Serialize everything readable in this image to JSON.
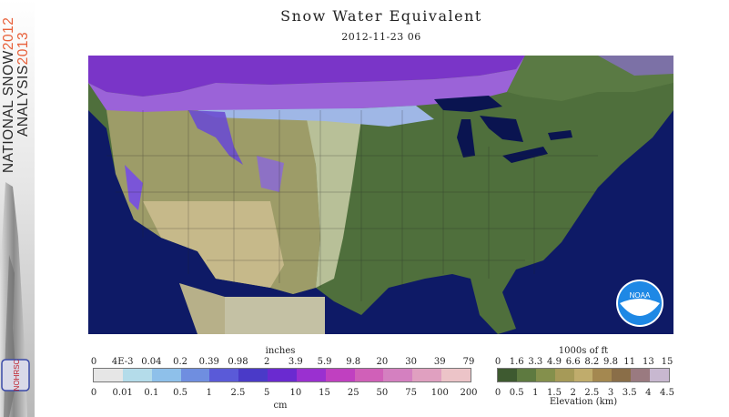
{
  "sidebar": {
    "line1": {
      "name": "NATIONAL SNOW",
      "year": "2012"
    },
    "line2": {
      "name": "ANALYSIS",
      "year": "2013"
    },
    "logo": "NOHRSC"
  },
  "header": {
    "title": "Snow Water Equivalent",
    "timestamp": "2012-11-23 06"
  },
  "map": {
    "noaa_logo": "NOAA",
    "colors": {
      "water": "#0e1a66",
      "lakes": "#0a1450",
      "lowland": "#4f6f3c",
      "plains": "#8c9a62",
      "upland": "#b9ad7c",
      "desert": "#c6c29c",
      "mexico_gray": "#c4c1a4",
      "canada_snow": "#9b63d8",
      "canada_snow_deep": "#7a35c8",
      "snow_light": "#9fb7e6"
    }
  },
  "legend": {
    "swe": {
      "unit_top": "inches",
      "unit_bottom": "cm",
      "top_ticks": [
        "0",
        "4E-3",
        "0.04",
        "0.2",
        "0.39",
        "0.98",
        "2",
        "3.9",
        "5.9",
        "9.8",
        "20",
        "30",
        "39",
        "79"
      ],
      "bottom_ticks": [
        "0",
        "0.01",
        "0.1",
        "0.5",
        "1",
        "2.5",
        "5",
        "10",
        "15",
        "25",
        "50",
        "75",
        "100",
        "200"
      ],
      "colors": [
        "#e6e6e6",
        "#b4dcea",
        "#8ec0ea",
        "#6f8ee0",
        "#5a5ad8",
        "#4a3ac8",
        "#6a2ad0",
        "#9a30d0",
        "#c040c0",
        "#d060b8",
        "#d480c0",
        "#e0a0c0",
        "#ecc4c8"
      ]
    },
    "elevation": {
      "unit_top": "1000s of ft",
      "unit_bottom": "Elevation (km)",
      "top_ticks": [
        "0",
        "1.6",
        "3.3",
        "4.9",
        "6.6",
        "8.2",
        "9.8",
        "11",
        "13",
        "15"
      ],
      "bottom_ticks": [
        "0",
        "0.5",
        "1",
        "1.5",
        "2",
        "2.5",
        "3",
        "3.5",
        "4",
        "4.5"
      ],
      "colors": [
        "#3e5a30",
        "#5e7a40",
        "#84904c",
        "#a69a58",
        "#c0ac6c",
        "#a48850",
        "#8a6e48",
        "#9a7a80",
        "#c8b8d0"
      ]
    }
  }
}
